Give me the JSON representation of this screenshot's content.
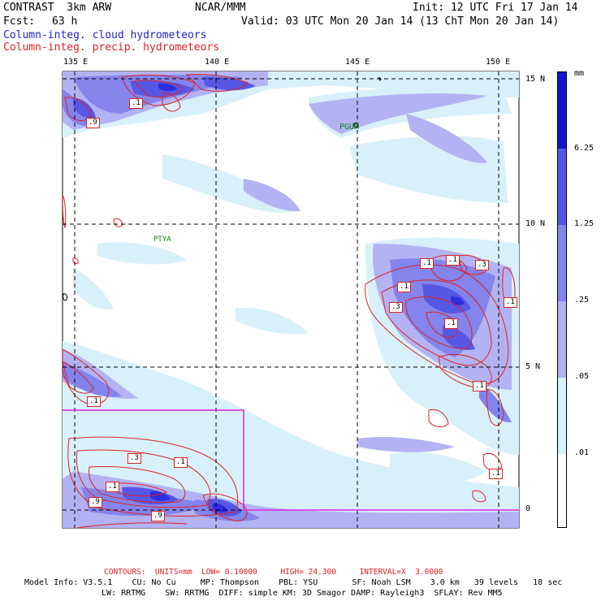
{
  "header": {
    "model": "CONTRAST  3km ARW",
    "org": "NCAR/MMM",
    "init": "Init: 12 UTC Fri 17 Jan 14",
    "fcst_label": "Fcst:",
    "fcst_value": "63 h",
    "valid": "Valid: 03 UTC Mon 20 Jan 14 (13 ChT Mon 20 Jan 14)",
    "field1": "Column-integ. cloud hydrometeors",
    "field2": "Column-integ. precip. hydrometeors"
  },
  "map": {
    "lon_labels": [
      "135 E",
      "140 E",
      "145 E",
      "150 E"
    ],
    "lat_labels": [
      "15 N",
      "10 N",
      "5 N",
      "0"
    ],
    "places": [
      "PGUM",
      "PTYA"
    ],
    "contour_labels": [
      ".1",
      ".9",
      ".1",
      ".1",
      ".3",
      ".1",
      ".1",
      ".3",
      ".1",
      ".1",
      ".1",
      ".1",
      ".3",
      ".1",
      ".9",
      ".9",
      ".1"
    ]
  },
  "colorbar": {
    "unit": "mm",
    "levels": [
      "6.25",
      "1.25",
      ".25",
      ".05",
      ".01"
    ],
    "colors": [
      "#1515c8",
      "#2c2ce0",
      "#5757e6",
      "#8484ec",
      "#b3b3f3",
      "#d8f0fa",
      "#ffffff"
    ]
  },
  "footer": {
    "contours": "CONTOURS:  UNITS=mm  LOW= 0.10000     HIGH= 24.300     INTERVAL=X  3.0000",
    "line1": "Model Info: V3.5.1    CU: No Cu     MP: Thompson    PBL: YSU       SF: Noah LSM    3.0 km   39 levels   18 sec",
    "line2": "LW: RRTMG    SW: RRTMG  DIFF: simple KM: 3D Smagor DAMP: Rayleigh3  SFLAY: Rev MM5"
  }
}
